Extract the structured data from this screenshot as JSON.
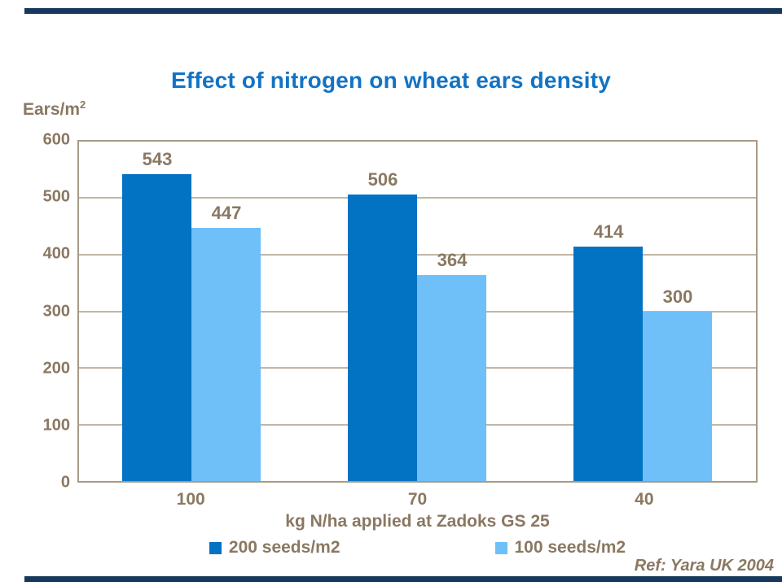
{
  "title": "Effect of nitrogen on wheat ears density",
  "y_axis": {
    "unit_label": "Ears/m",
    "unit_sup": "2"
  },
  "x_axis": {
    "title": "kg N/ha applied at Zadoks GS 25"
  },
  "legend": [
    {
      "label": "200 seeds/m2",
      "color": "#0272C3"
    },
    {
      "label": "100 seeds/m2",
      "color": "#6FBFF8"
    }
  ],
  "ref": "Ref: Yara UK 2004",
  "colors": {
    "title": "#1273C4",
    "axis_text": "#8A7862",
    "gridline": "#C1B6A6",
    "frame": "#A89A87",
    "series1": "#0272C3",
    "series2": "#6FBFF8",
    "rule": "#17375D"
  },
  "chart_data": {
    "type": "bar",
    "title": "Effect of nitrogen on wheat ears density",
    "categories": [
      "100",
      "70",
      "40"
    ],
    "series": [
      {
        "name": "200 seeds/m2",
        "values": [
          543,
          506,
          414
        ],
        "color": "#0272C3"
      },
      {
        "name": "100 seeds/m2",
        "values": [
          447,
          364,
          300
        ],
        "color": "#6FBFF8"
      }
    ],
    "xlabel": "kg N/ha applied at Zadoks GS 25",
    "ylabel": "Ears/m2",
    "ylim": [
      0,
      600
    ],
    "yticks": [
      600,
      500,
      400,
      300,
      200,
      100,
      0
    ],
    "grid": true,
    "legend_position": "bottom",
    "data_labels": true
  }
}
